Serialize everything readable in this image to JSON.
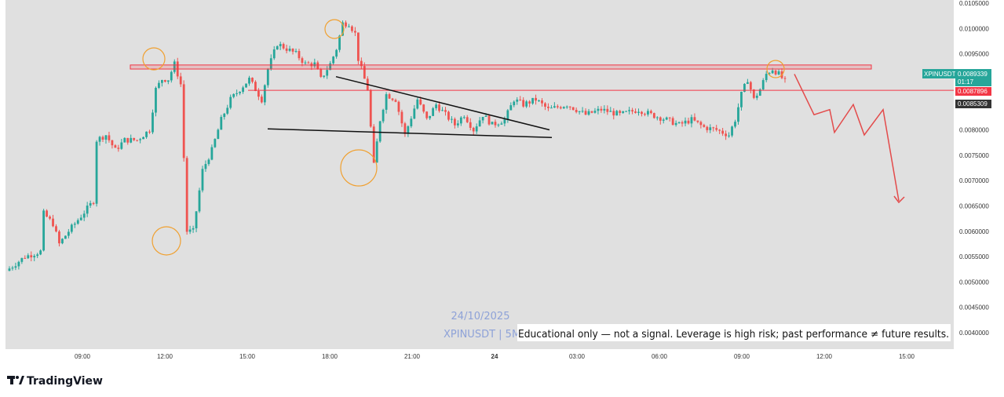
{
  "brand": {
    "name": "TradingView"
  },
  "watermark": {
    "date": "24/10/2025",
    "symbol_line": "XPINUSDT | 5M"
  },
  "disclaimer": "Educational only — not a signal. Leverage is high risk; past performance ≠ future results.",
  "price_badges": {
    "current": {
      "symbol": "XPINUSDT",
      "price": "0.0089339",
      "countdown": "01:17",
      "color": "#26a69a"
    },
    "resistance": {
      "price": "0.0087896",
      "color": "#f23645"
    },
    "support": {
      "price": "0.0085309",
      "color": "#333333"
    }
  },
  "colors": {
    "up": "#26a69a",
    "down": "#ef5350",
    "zone": "#f23645",
    "circle": "#f0a030",
    "projection": "#e34b4b",
    "plot_bg": "#e0e0e0"
  },
  "chart_data": {
    "type": "candlestick",
    "title": "",
    "symbol": "XPINUSDT",
    "timeframe": "5M",
    "x_tick_labels": [
      "09:00",
      "12:00",
      "15:00",
      "18:00",
      "21:00",
      "24",
      "03:00",
      "06:00",
      "09:00",
      "12:00",
      "15:00"
    ],
    "y_tick_labels": [
      "0.0105000",
      "0.0100000",
      "0.0095000",
      "0.0090000",
      "0.0085000",
      "0.0080000",
      "0.0075000",
      "0.0070000",
      "0.0065000",
      "0.0060000",
      "0.0055000",
      "0.0050000",
      "0.0045000",
      "0.0040000"
    ],
    "ylim": [
      0.00385,
      0.01055
    ],
    "grid": false,
    "price_path": [
      [
        0,
        0.00522
      ],
      [
        6,
        0.0055
      ],
      [
        11,
        0.0056
      ],
      [
        12,
        0.00635
      ],
      [
        15,
        0.00615
      ],
      [
        17,
        0.00575
      ],
      [
        20,
        0.006
      ],
      [
        24,
        0.0063
      ],
      [
        28,
        0.0066
      ],
      [
        29,
        0.0078
      ],
      [
        32,
        0.0079
      ],
      [
        35,
        0.0076
      ],
      [
        38,
        0.0078
      ],
      [
        42,
        0.0078
      ],
      [
        46,
        0.008
      ],
      [
        48,
        0.0088
      ],
      [
        50,
        0.009
      ],
      [
        52,
        0.009
      ],
      [
        54,
        0.0093
      ],
      [
        56,
        0.0089
      ],
      [
        58,
        0.006
      ],
      [
        60,
        0.006
      ],
      [
        63,
        0.0072
      ],
      [
        66,
        0.0076
      ],
      [
        69,
        0.0082
      ],
      [
        72,
        0.0086
      ],
      [
        75,
        0.0088
      ],
      [
        78,
        0.009
      ],
      [
        82,
        0.0086
      ],
      [
        84,
        0.0092
      ],
      [
        87,
        0.0097
      ],
      [
        90,
        0.0096
      ],
      [
        93,
        0.0095
      ],
      [
        96,
        0.0093
      ],
      [
        99,
        0.0093
      ],
      [
        101,
        0.009
      ],
      [
        104,
        0.0093
      ],
      [
        106,
        0.0096
      ],
      [
        108,
        0.0101
      ],
      [
        110,
        0.0101
      ],
      [
        112,
        0.0099
      ],
      [
        113,
        0.0094
      ],
      [
        116,
        0.0088
      ],
      [
        118,
        0.0073
      ],
      [
        120,
        0.0082
      ],
      [
        122,
        0.0087
      ],
      [
        125,
        0.0086
      ],
      [
        128,
        0.0079
      ],
      [
        132,
        0.0086
      ],
      [
        135,
        0.0082
      ],
      [
        138,
        0.0085
      ],
      [
        141,
        0.0083
      ],
      [
        144,
        0.0081
      ],
      [
        147,
        0.0083
      ],
      [
        150,
        0.008
      ],
      [
        153,
        0.0083
      ],
      [
        156,
        0.0081
      ],
      [
        160,
        0.0082
      ],
      [
        163,
        0.0086
      ],
      [
        166,
        0.0085
      ],
      [
        170,
        0.0086
      ],
      [
        174,
        0.0084
      ],
      [
        180,
        0.0085
      ],
      [
        186,
        0.0083
      ],
      [
        191,
        0.0084
      ],
      [
        197,
        0.0083
      ],
      [
        203,
        0.0084
      ],
      [
        207,
        0.0083
      ],
      [
        212,
        0.0082
      ],
      [
        216,
        0.0081
      ],
      [
        220,
        0.0082
      ],
      [
        224,
        0.00805
      ],
      [
        228,
        0.008
      ],
      [
        232,
        0.0079
      ],
      [
        234,
        0.0082
      ],
      [
        236,
        0.0087
      ],
      [
        238,
        0.009
      ],
      [
        240,
        0.0086
      ],
      [
        242,
        0.0088
      ],
      [
        244,
        0.0091
      ],
      [
        246,
        0.0092
      ],
      [
        248,
        0.0091
      ],
      [
        250,
        0.00895
      ]
    ],
    "series_description_times": "x index is 5-minute bar count; values in price units"
  },
  "drawings": {
    "resistance_zone": [
      0.00928,
      0.0092
    ],
    "support_line_price": 0.00878,
    "triangle_upper": [
      [
        0.00905,
        0.008
      ]
    ],
    "triangle_lower": [
      [
        0.00802,
        0.00785
      ]
    ],
    "projection": [
      0.0091,
      0.0083,
      0.0084,
      0.00795,
      0.0085,
      0.0079,
      0.0084,
      0.0066
    ]
  }
}
